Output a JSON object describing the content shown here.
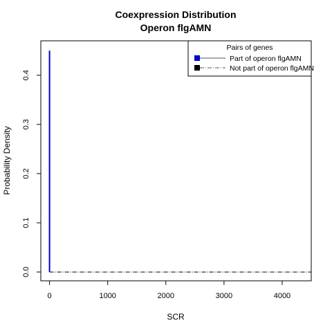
{
  "chart_data": {
    "type": "line",
    "title": "Coexpression Distribution",
    "subtitle": "Operon flgAMN",
    "xlabel": "SCR",
    "ylabel": "Probability Density",
    "xlim": [
      -150,
      4500
    ],
    "ylim": [
      -0.018,
      0.47
    ],
    "x_ticks": [
      0,
      1000,
      2000,
      3000,
      4000
    ],
    "x_tick_labels": [
      "0",
      "1000",
      "2000",
      "3000",
      "4000"
    ],
    "y_ticks": [
      0.0,
      0.1,
      0.2,
      0.3,
      0.4
    ],
    "y_tick_labels": [
      "0.0",
      "0.1",
      "0.2",
      "0.3",
      "0.4"
    ],
    "grid": false,
    "legend": {
      "title": "Pairs of genes",
      "placement": "top-right",
      "entries": [
        {
          "label": "Part of operon flgAMN",
          "color": "#0000cc",
          "line": "solid"
        },
        {
          "label": "Not part of operon flgAMN",
          "color": "#000000",
          "line": "dashdot"
        }
      ]
    },
    "series": [
      {
        "name": "Part of operon flgAMN",
        "color": "#0000cc",
        "line": "solid",
        "x": [
          0,
          0
        ],
        "y": [
          0.0,
          0.45
        ]
      },
      {
        "name": "Not part of operon flgAMN",
        "color": "#000000",
        "line": "dashdot",
        "x": [
          0,
          4500
        ],
        "y": [
          0.0,
          0.0
        ]
      }
    ]
  }
}
